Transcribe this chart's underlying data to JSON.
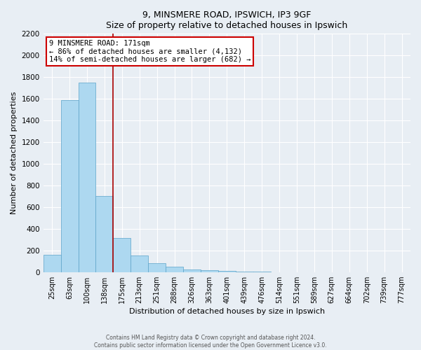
{
  "title": "9, MINSMERE ROAD, IPSWICH, IP3 9GF",
  "subtitle": "Size of property relative to detached houses in Ipswich",
  "xlabel": "Distribution of detached houses by size in Ipswich",
  "ylabel": "Number of detached properties",
  "bar_labels": [
    "25sqm",
    "63sqm",
    "100sqm",
    "138sqm",
    "175sqm",
    "213sqm",
    "251sqm",
    "288sqm",
    "326sqm",
    "363sqm",
    "401sqm",
    "439sqm",
    "476sqm",
    "514sqm",
    "551sqm",
    "589sqm",
    "627sqm",
    "664sqm",
    "702sqm",
    "739sqm",
    "777sqm"
  ],
  "bar_values": [
    160,
    1590,
    1750,
    700,
    315,
    155,
    80,
    50,
    25,
    15,
    8,
    5,
    5,
    0,
    0,
    0,
    0,
    0,
    0,
    0,
    0
  ],
  "bar_color": "#add8f0",
  "bar_edge_color": "#5ba3c9",
  "vline_color": "#aa0000",
  "annotation_line1": "9 MINSMERE ROAD: 171sqm",
  "annotation_line2": "← 86% of detached houses are smaller (4,132)",
  "annotation_line3": "14% of semi-detached houses are larger (682) →",
  "annotation_box_facecolor": "#ffffff",
  "annotation_border_color": "#cc0000",
  "ylim": [
    0,
    2200
  ],
  "yticks": [
    0,
    200,
    400,
    600,
    800,
    1000,
    1200,
    1400,
    1600,
    1800,
    2000,
    2200
  ],
  "footer_line1": "Contains HM Land Registry data © Crown copyright and database right 2024.",
  "footer_line2": "Contains public sector information licensed under the Open Government Licence v3.0.",
  "background_color": "#e8eef4",
  "grid_color": "#ffffff"
}
